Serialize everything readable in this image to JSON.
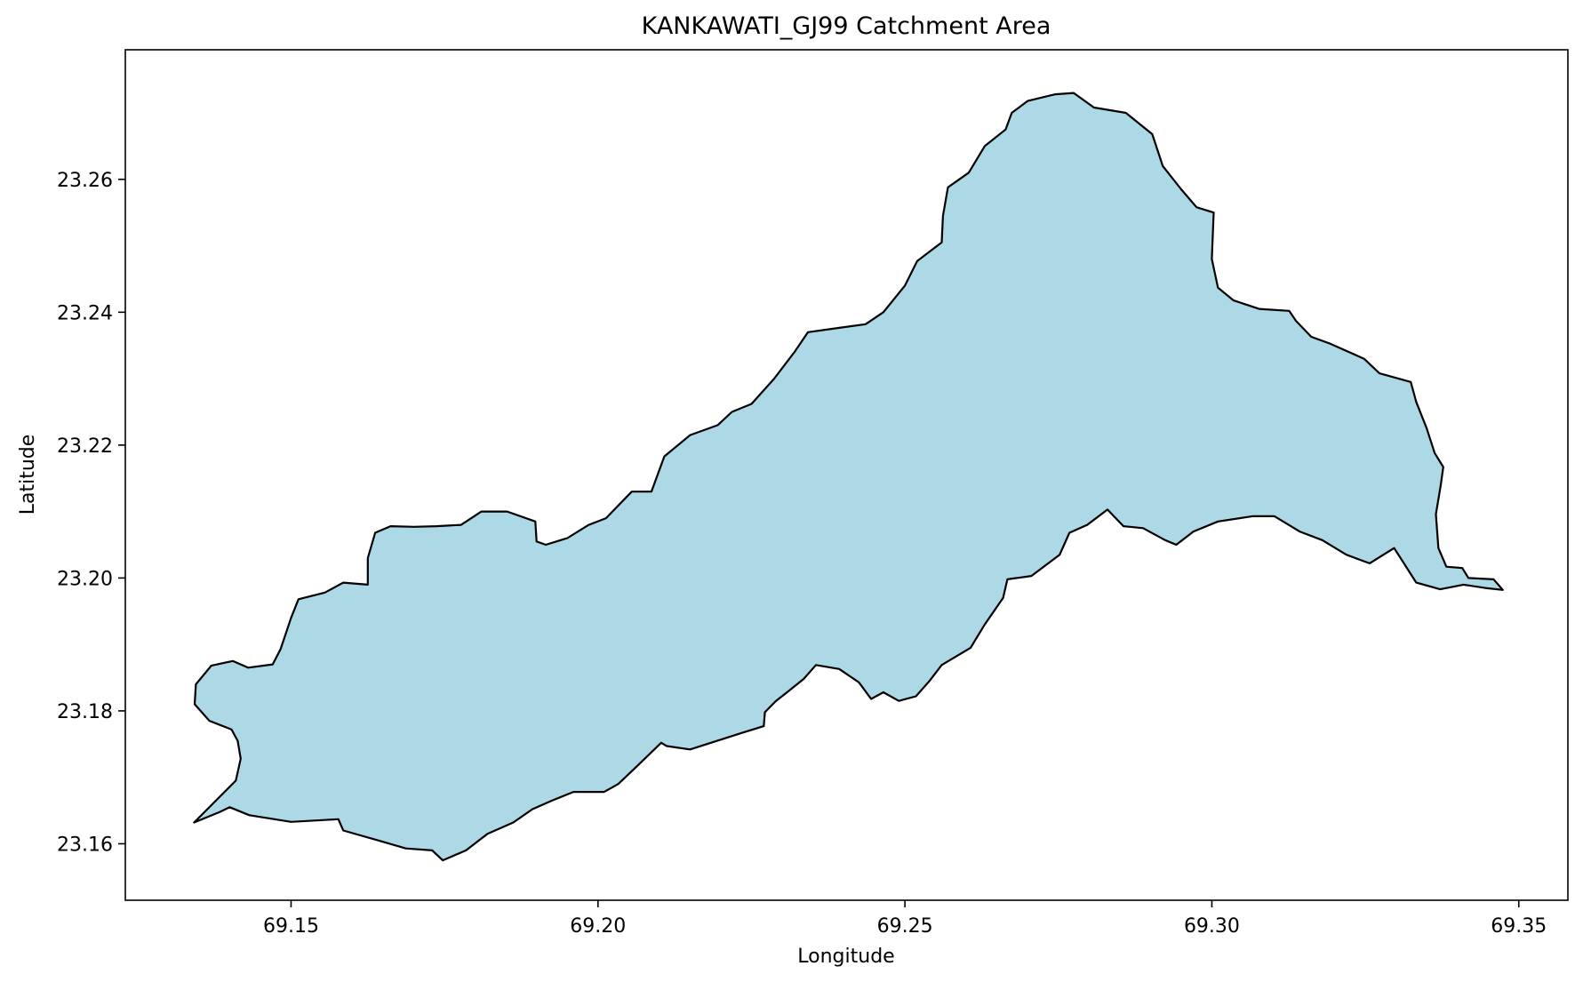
{
  "chart_data": {
    "type": "map",
    "title": "KANKAWATI_GJ99 Catchment Area",
    "xlabel": "Longitude",
    "ylabel": "Latitude",
    "xlim": [
      69.123,
      69.358
    ],
    "ylim": [
      23.1515,
      23.2795
    ],
    "xticks": [
      {
        "value": 69.15,
        "label": "69.15"
      },
      {
        "value": 69.2,
        "label": "69.20"
      },
      {
        "value": 69.25,
        "label": "69.25"
      },
      {
        "value": 69.3,
        "label": "69.30"
      },
      {
        "value": 69.35,
        "label": "69.35"
      }
    ],
    "yticks": [
      {
        "value": 23.16,
        "label": "23.16"
      },
      {
        "value": 23.18,
        "label": "23.18"
      },
      {
        "value": 23.2,
        "label": "23.20"
      },
      {
        "value": 23.22,
        "label": "23.22"
      },
      {
        "value": 23.24,
        "label": "23.24"
      },
      {
        "value": 23.26,
        "label": "23.26"
      }
    ],
    "grid": false,
    "catchment": {
      "fill": "#add8e6",
      "edge": "#000000",
      "outline": [
        [
          69.1342,
          23.1632
        ],
        [
          69.1384,
          23.1648
        ],
        [
          69.14,
          23.1655
        ],
        [
          69.1432,
          23.1643
        ],
        [
          69.15,
          23.1633
        ],
        [
          69.1577,
          23.1637
        ],
        [
          69.1585,
          23.162
        ],
        [
          69.1642,
          23.1605
        ],
        [
          69.1687,
          23.1593
        ],
        [
          69.173,
          23.159
        ],
        [
          69.1747,
          23.1575
        ],
        [
          69.1785,
          23.159
        ],
        [
          69.182,
          23.1615
        ],
        [
          69.1862,
          23.1632
        ],
        [
          69.1893,
          23.1652
        ],
        [
          69.1925,
          23.1665
        ],
        [
          69.196,
          23.1678
        ],
        [
          69.201,
          23.1678
        ],
        [
          69.2033,
          23.169
        ],
        [
          69.2065,
          23.1718
        ],
        [
          69.2103,
          23.1752
        ],
        [
          69.2112,
          23.1747
        ],
        [
          69.215,
          23.1742
        ],
        [
          69.2235,
          23.1767
        ],
        [
          69.227,
          23.1777
        ],
        [
          69.2272,
          23.1798
        ],
        [
          69.229,
          23.1815
        ],
        [
          69.2308,
          23.1828
        ],
        [
          69.2335,
          23.1848
        ],
        [
          69.2355,
          23.1869
        ],
        [
          69.2393,
          23.1863
        ],
        [
          69.2425,
          23.1843
        ],
        [
          69.2445,
          23.1818
        ],
        [
          69.2465,
          23.1828
        ],
        [
          69.249,
          23.1815
        ],
        [
          69.2518,
          23.1822
        ],
        [
          69.254,
          23.1845
        ],
        [
          69.256,
          23.1869
        ],
        [
          69.2607,
          23.1895
        ],
        [
          69.263,
          23.193
        ],
        [
          69.266,
          23.197
        ],
        [
          69.2667,
          23.1998
        ],
        [
          69.2706,
          23.2003
        ],
        [
          69.2752,
          23.2035
        ],
        [
          69.2768,
          23.2068
        ],
        [
          69.2797,
          23.208
        ],
        [
          69.283,
          23.2103
        ],
        [
          69.2856,
          23.2078
        ],
        [
          69.2888,
          23.2075
        ],
        [
          69.2924,
          23.2057
        ],
        [
          69.2942,
          23.205
        ],
        [
          69.297,
          23.207
        ],
        [
          69.301,
          23.2085
        ],
        [
          69.3066,
          23.2093
        ],
        [
          69.3102,
          23.2093
        ],
        [
          69.3143,
          23.207
        ],
        [
          69.318,
          23.2057
        ],
        [
          69.3219,
          23.2035
        ],
        [
          69.3257,
          23.2022
        ],
        [
          69.3297,
          23.2045
        ],
        [
          69.3333,
          23.1993
        ],
        [
          69.3372,
          23.1983
        ],
        [
          69.341,
          23.199
        ],
        [
          69.3445,
          23.1985
        ],
        [
          69.3474,
          23.1982
        ],
        [
          69.3459,
          23.1998
        ],
        [
          69.3418,
          23.2
        ],
        [
          69.3408,
          23.2015
        ],
        [
          69.3382,
          23.2017
        ],
        [
          69.3369,
          23.2045
        ],
        [
          69.3365,
          23.2096
        ],
        [
          69.3373,
          23.214
        ],
        [
          69.3377,
          23.2167
        ],
        [
          69.3363,
          23.2188
        ],
        [
          69.335,
          23.2225
        ],
        [
          69.3333,
          23.2265
        ],
        [
          69.3324,
          23.2295
        ],
        [
          69.3273,
          23.2308
        ],
        [
          69.3248,
          23.233
        ],
        [
          69.3192,
          23.2353
        ],
        [
          69.3162,
          23.2363
        ],
        [
          69.3137,
          23.2387
        ],
        [
          69.3126,
          23.2402
        ],
        [
          69.3077,
          23.2405
        ],
        [
          69.3035,
          23.2418
        ],
        [
          69.301,
          23.2437
        ],
        [
          69.3,
          23.248
        ],
        [
          69.3003,
          23.255
        ],
        [
          69.2975,
          23.2558
        ],
        [
          69.295,
          23.2585
        ],
        [
          69.292,
          23.262
        ],
        [
          69.2903,
          23.2668
        ],
        [
          69.286,
          23.27
        ],
        [
          69.2808,
          23.2708
        ],
        [
          69.2775,
          23.273
        ],
        [
          69.2745,
          23.2728
        ],
        [
          69.27,
          23.2718
        ],
        [
          69.2674,
          23.27
        ],
        [
          69.2664,
          23.2675
        ],
        [
          69.263,
          23.265
        ],
        [
          69.2604,
          23.261
        ],
        [
          69.257,
          23.2588
        ],
        [
          69.2562,
          23.2545
        ],
        [
          69.256,
          23.2505
        ],
        [
          69.252,
          23.2477
        ],
        [
          69.25,
          23.244
        ],
        [
          69.2465,
          23.24
        ],
        [
          69.2436,
          23.2382
        ],
        [
          69.2397,
          23.2377
        ],
        [
          69.2342,
          23.237
        ],
        [
          69.232,
          23.234
        ],
        [
          69.2287,
          23.23
        ],
        [
          69.225,
          23.2262
        ],
        [
          69.2218,
          23.225
        ],
        [
          69.2195,
          23.223
        ],
        [
          69.215,
          23.2215
        ],
        [
          69.2108,
          23.2183
        ],
        [
          69.2087,
          23.213
        ],
        [
          69.2055,
          23.213
        ],
        [
          69.2013,
          23.209
        ],
        [
          69.1985,
          23.208
        ],
        [
          69.195,
          23.206
        ],
        [
          69.1915,
          23.205
        ],
        [
          69.19,
          23.2055
        ],
        [
          69.1898,
          23.2085
        ],
        [
          69.1852,
          23.21
        ],
        [
          69.181,
          23.21
        ],
        [
          69.1777,
          23.208
        ],
        [
          69.1737,
          23.2078
        ],
        [
          69.17,
          23.2077
        ],
        [
          69.1662,
          23.2078
        ],
        [
          69.1637,
          23.2068
        ],
        [
          69.1625,
          23.203
        ],
        [
          69.1625,
          23.199
        ],
        [
          69.1585,
          23.1993
        ],
        [
          69.1555,
          23.1978
        ],
        [
          69.1512,
          23.1968
        ],
        [
          69.15,
          23.194
        ],
        [
          69.1483,
          23.1893
        ],
        [
          69.147,
          23.187
        ],
        [
          69.143,
          23.1865
        ],
        [
          69.1405,
          23.1875
        ],
        [
          69.137,
          23.1868
        ],
        [
          69.1345,
          23.184
        ],
        [
          69.1343,
          23.181
        ],
        [
          69.1367,
          23.1785
        ],
        [
          69.1403,
          23.1772
        ],
        [
          69.1413,
          23.1755
        ],
        [
          69.1418,
          23.1728
        ],
        [
          69.141,
          23.1695
        ],
        [
          69.1342,
          23.1632
        ]
      ]
    }
  }
}
